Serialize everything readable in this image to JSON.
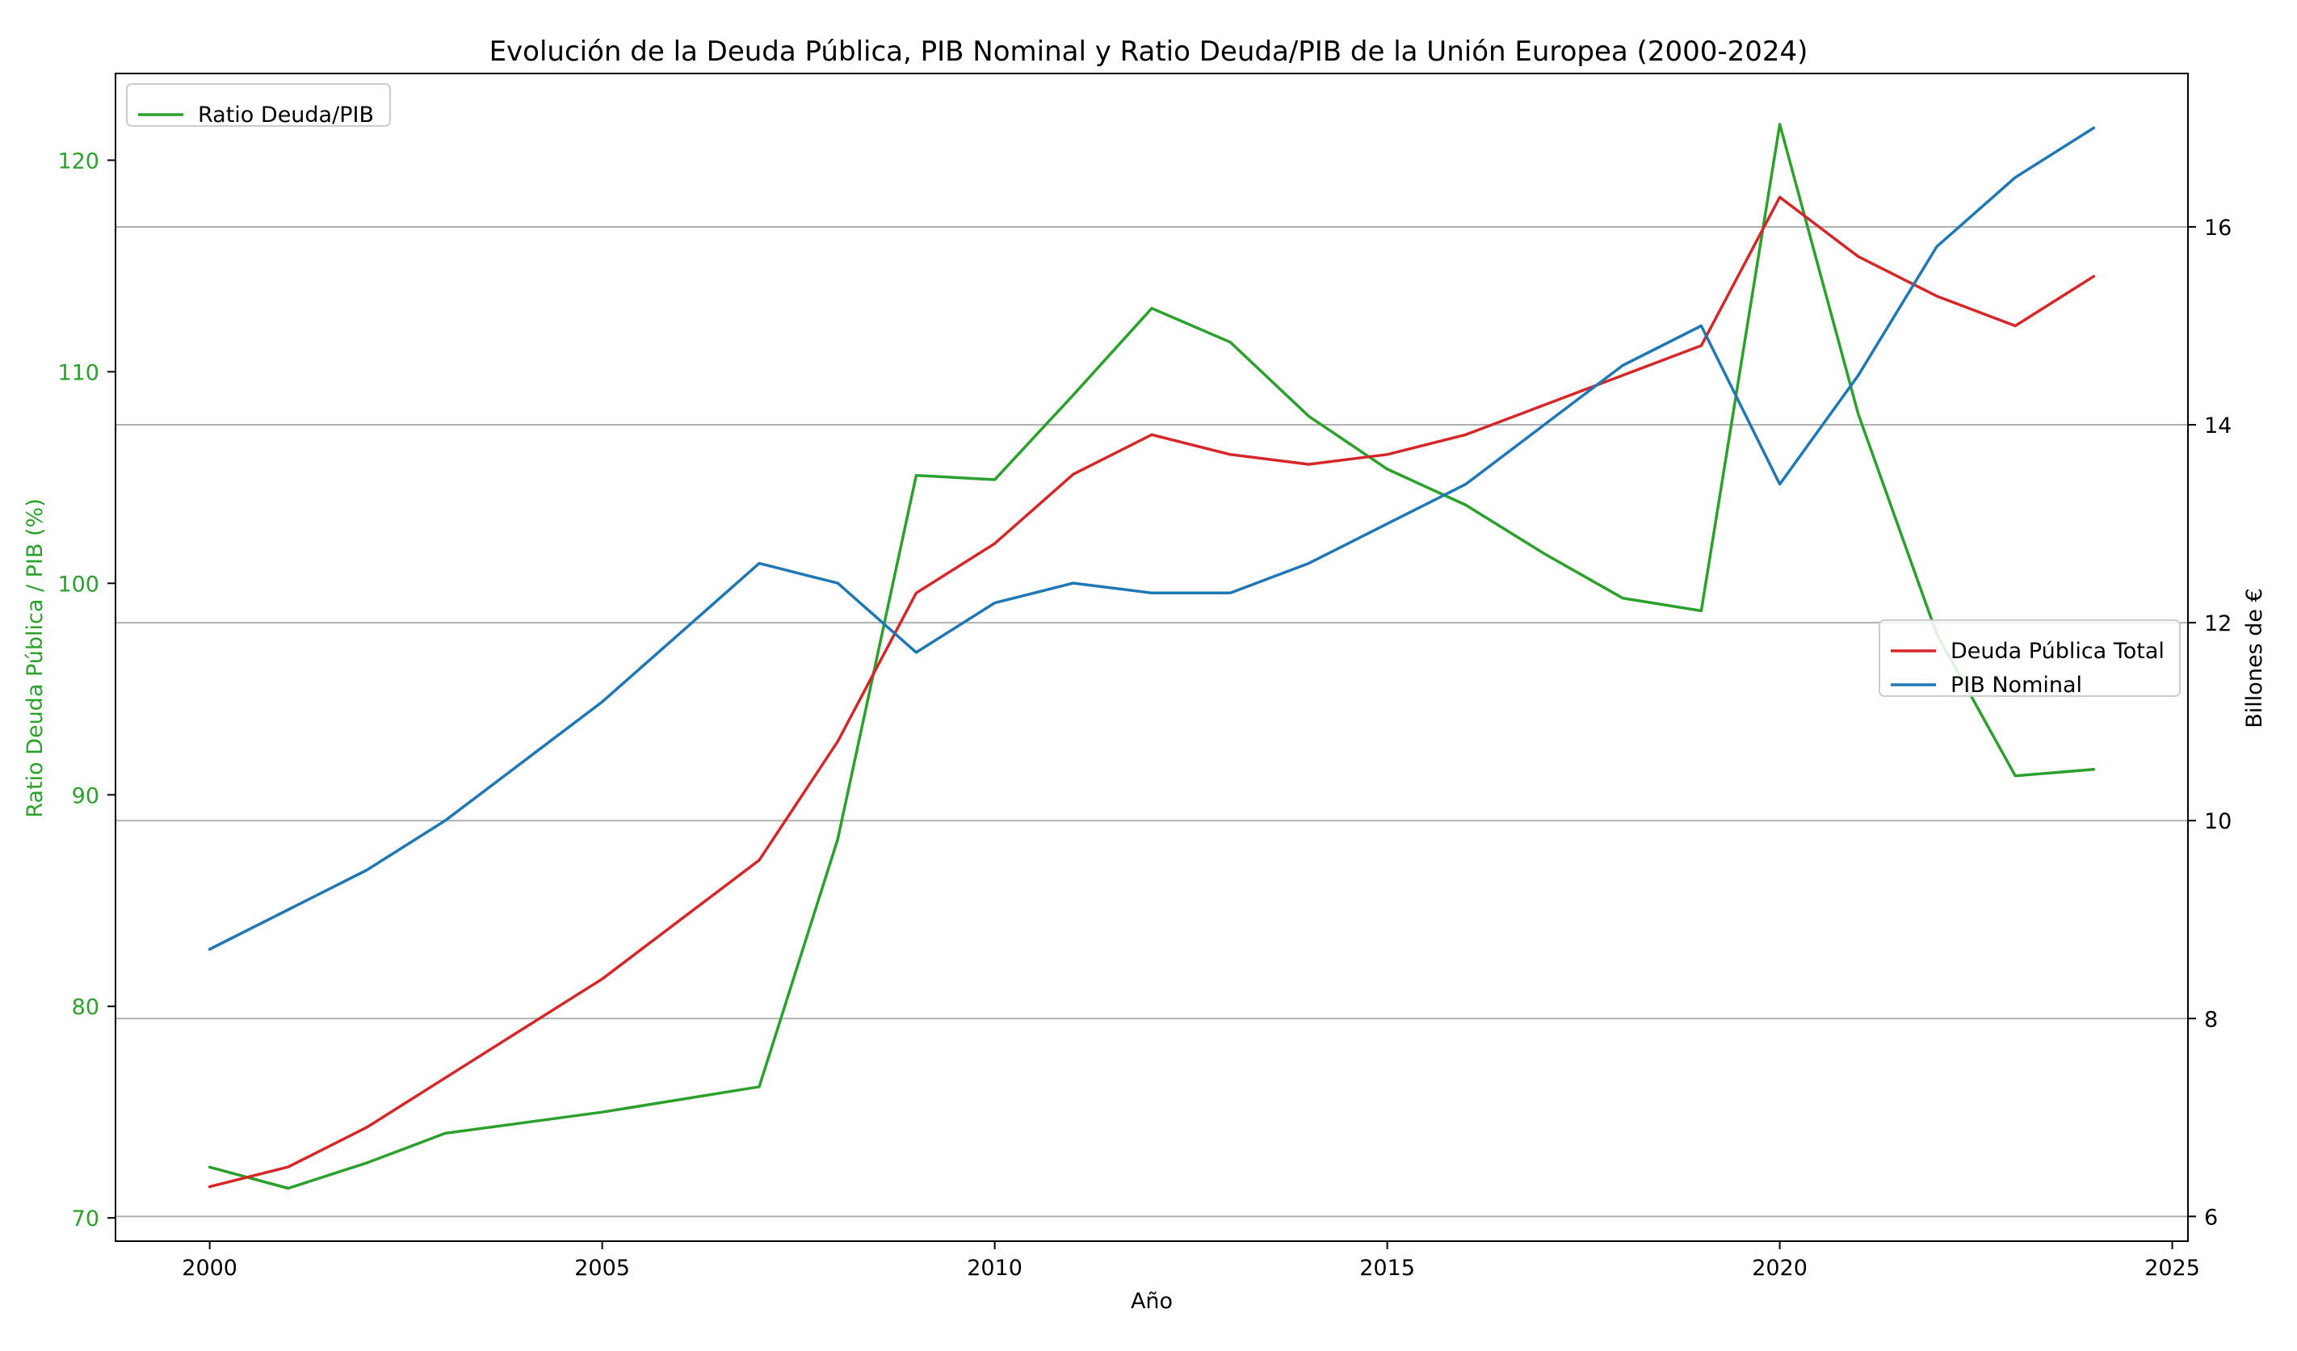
{
  "chart_data": {
    "type": "line",
    "title": "Evolución de la Deuda Pública, PIB Nominal y Ratio Deuda/PIB de la Unión Europea (2000-2024)",
    "xlabel": "Año",
    "ylabel_left": "Ratio Deuda Pública / PIB (%)",
    "ylabel_right": "Billones de €",
    "x": [
      2000,
      2001,
      2002,
      2003,
      2004,
      2005,
      2006,
      2007,
      2008,
      2009,
      2010,
      2011,
      2012,
      2013,
      2014,
      2015,
      2016,
      2017,
      2018,
      2019,
      2020,
      2021,
      2022,
      2023,
      2024
    ],
    "xlim": [
      1998.8,
      2025.2
    ],
    "ylim_left": [
      68.9,
      124.1
    ],
    "ylim_right": [
      5.75,
      17.55
    ],
    "xticks": [
      2000,
      2005,
      2010,
      2015,
      2020,
      2025
    ],
    "yticks_left": [
      70,
      80,
      90,
      100,
      110,
      120
    ],
    "yticks_right": [
      6,
      8,
      10,
      12,
      14,
      16
    ],
    "grid": "horizontal lines at right-axis ticks",
    "series": [
      {
        "name": "Ratio Deuda/PIB",
        "axis": "left",
        "color": "#2ca02c",
        "values": [
          72.4,
          71.4,
          72.6,
          74.0,
          74.5,
          75.0,
          75.6,
          76.2,
          87.9,
          105.1,
          104.9,
          108.9,
          113.0,
          111.4,
          107.9,
          105.4,
          103.7,
          101.4,
          99.3,
          98.7,
          121.7,
          108.0,
          97.6,
          90.9,
          91.2
        ]
      },
      {
        "name": "Deuda Pública Total",
        "axis": "right",
        "color": "#d62728",
        "values": [
          6.3,
          6.5,
          6.9,
          7.4,
          7.9,
          8.4,
          9.0,
          9.6,
          10.8,
          12.3,
          12.8,
          13.5,
          13.9,
          13.7,
          13.6,
          13.7,
          13.9,
          14.2,
          14.5,
          14.8,
          16.3,
          15.7,
          15.3,
          15.0,
          15.5
        ]
      },
      {
        "name": "PIB Nominal",
        "axis": "right",
        "color": "#1f77b4",
        "values": [
          8.7,
          9.1,
          9.5,
          10.0,
          10.6,
          11.2,
          11.9,
          12.6,
          12.4,
          11.7,
          12.2,
          12.4,
          12.3,
          12.3,
          12.6,
          13.0,
          13.4,
          14.0,
          14.6,
          15.0,
          13.4,
          14.5,
          15.8,
          16.5,
          17.0
        ]
      }
    ],
    "legends": [
      {
        "placement": "upper-left",
        "entries": [
          "Ratio Deuda/PIB"
        ]
      },
      {
        "placement": "center-right",
        "entries": [
          "Deuda Pública Total",
          "PIB Nominal"
        ]
      }
    ],
    "colors": {
      "left_axis": "#2ca02c",
      "right_axis": "#000000",
      "grid": "#b0b0b0"
    }
  }
}
